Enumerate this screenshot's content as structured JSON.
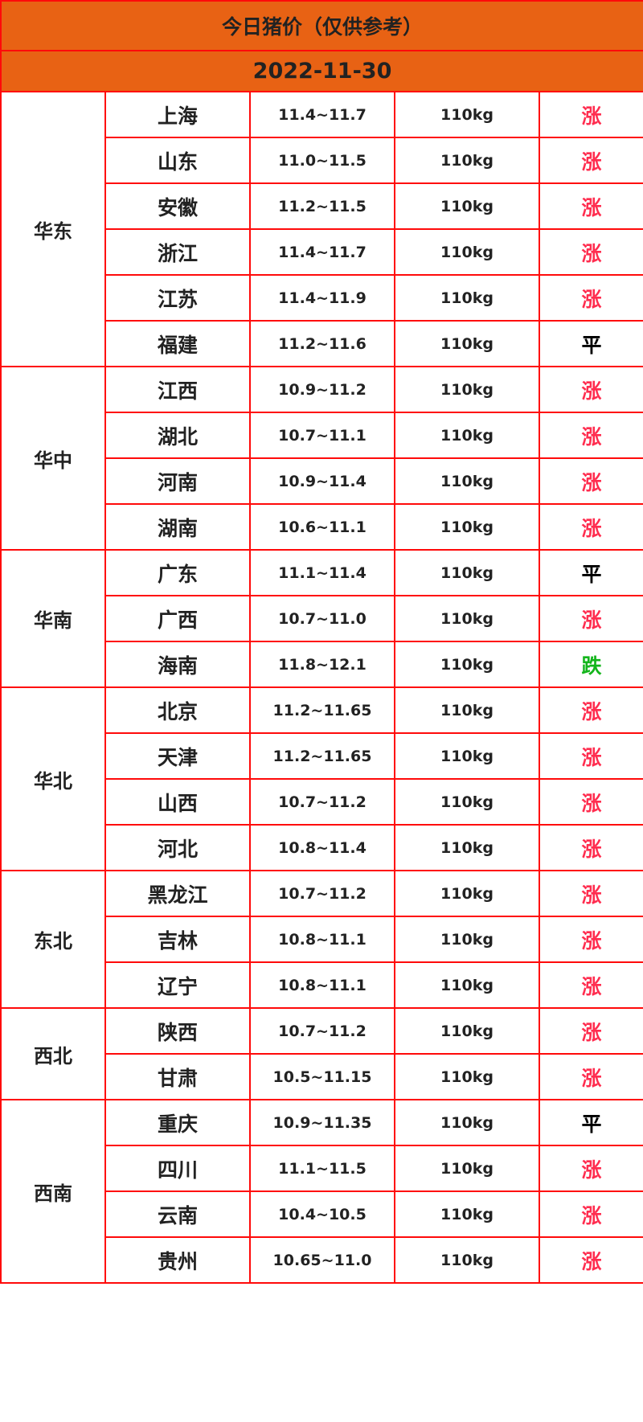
{
  "title": "今日猪价（仅供参考）",
  "date": "2022-11-30",
  "colors": {
    "header_bg": "#e86214",
    "border": "#ff0a0a",
    "up": "#ff2d4f",
    "flat": "#000000",
    "down": "#13b51b"
  },
  "regions": [
    {
      "name": "华东",
      "rows": [
        {
          "province": "上海",
          "price": "11.4~11.7",
          "weight": "110kg",
          "trend": "涨"
        },
        {
          "province": "山东",
          "price": "11.0~11.5",
          "weight": "110kg",
          "trend": "涨"
        },
        {
          "province": "安徽",
          "price": "11.2~11.5",
          "weight": "110kg",
          "trend": "涨"
        },
        {
          "province": "浙江",
          "price": "11.4~11.7",
          "weight": "110kg",
          "trend": "涨"
        },
        {
          "province": "江苏",
          "price": "11.4~11.9",
          "weight": "110kg",
          "trend": "涨"
        },
        {
          "province": "福建",
          "price": "11.2~11.6",
          "weight": "110kg",
          "trend": "平"
        }
      ]
    },
    {
      "name": "华中",
      "rows": [
        {
          "province": "江西",
          "price": "10.9~11.2",
          "weight": "110kg",
          "trend": "涨"
        },
        {
          "province": "湖北",
          "price": "10.7~11.1",
          "weight": "110kg",
          "trend": "涨"
        },
        {
          "province": "河南",
          "price": "10.9~11.4",
          "weight": "110kg",
          "trend": "涨"
        },
        {
          "province": "湖南",
          "price": "10.6~11.1",
          "weight": "110kg",
          "trend": "涨"
        }
      ]
    },
    {
      "name": "华南",
      "rows": [
        {
          "province": "广东",
          "price": "11.1~11.4",
          "weight": "110kg",
          "trend": "平"
        },
        {
          "province": "广西",
          "price": "10.7~11.0",
          "weight": "110kg",
          "trend": "涨"
        },
        {
          "province": "海南",
          "price": "11.8~12.1",
          "weight": "110kg",
          "trend": "跌"
        }
      ]
    },
    {
      "name": "华北",
      "rows": [
        {
          "province": "北京",
          "price": "11.2~11.65",
          "weight": "110kg",
          "trend": "涨"
        },
        {
          "province": "天津",
          "price": "11.2~11.65",
          "weight": "110kg",
          "trend": "涨"
        },
        {
          "province": "山西",
          "price": "10.7~11.2",
          "weight": "110kg",
          "trend": "涨"
        },
        {
          "province": "河北",
          "price": "10.8~11.4",
          "weight": "110kg",
          "trend": "涨"
        }
      ]
    },
    {
      "name": "东北",
      "rows": [
        {
          "province": "黑龙江",
          "price": "10.7~11.2",
          "weight": "110kg",
          "trend": "涨"
        },
        {
          "province": "吉林",
          "price": "10.8~11.1",
          "weight": "110kg",
          "trend": "涨"
        },
        {
          "province": "辽宁",
          "price": "10.8~11.1",
          "weight": "110kg",
          "trend": "涨"
        }
      ]
    },
    {
      "name": "西北",
      "rows": [
        {
          "province": "陕西",
          "price": "10.7~11.2",
          "weight": "110kg",
          "trend": "涨"
        },
        {
          "province": "甘肃",
          "price": "10.5~11.15",
          "weight": "110kg",
          "trend": "涨"
        }
      ]
    },
    {
      "name": "西南",
      "rows": [
        {
          "province": "重庆",
          "price": "10.9~11.35",
          "weight": "110kg",
          "trend": "平"
        },
        {
          "province": "四川",
          "price": "11.1~11.5",
          "weight": "110kg",
          "trend": "涨"
        },
        {
          "province": "云南",
          "price": "10.4~10.5",
          "weight": "110kg",
          "trend": "涨"
        },
        {
          "province": "贵州",
          "price": "10.65~11.0",
          "weight": "110kg",
          "trend": "涨"
        }
      ]
    }
  ]
}
